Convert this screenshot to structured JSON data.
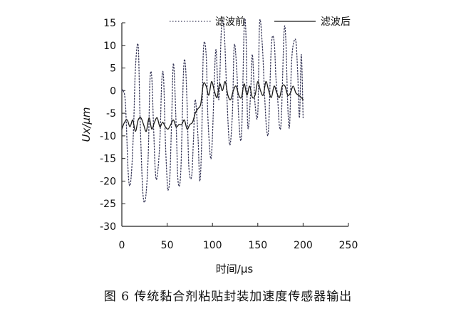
{
  "caption": "图 6   传统黏合剂粘贴封装加速度传感器输出",
  "chart_data": {
    "type": "line",
    "title": "",
    "xlabel": "时间/μs",
    "ylabel": "Ux/μm",
    "xlim": [
      0,
      250
    ],
    "ylim": [
      -30,
      15
    ],
    "xticks": [
      0,
      50,
      100,
      150,
      200,
      250
    ],
    "yticks": [
      15,
      10,
      5,
      0,
      -5,
      -10,
      -15,
      -20,
      -25,
      -30
    ],
    "grid": false,
    "legend_position": "top-right",
    "series": [
      {
        "name": "滤波前",
        "style": "dotted",
        "color": "#3a3a5a",
        "x": [
          0,
          1.5,
          4,
          7,
          9,
          11,
          13,
          15,
          18,
          20,
          23,
          26,
          29,
          31,
          33,
          35,
          37,
          39,
          42,
          44,
          46,
          48,
          50,
          51,
          53,
          55,
          57,
          60,
          62,
          65,
          68,
          70,
          72,
          74,
          77,
          79,
          81,
          84,
          86,
          88,
          90,
          93,
          95,
          98,
          100,
          102,
          104,
          107,
          110,
          113,
          116,
          119,
          122,
          124,
          127,
          129,
          132,
          135,
          137,
          139,
          142,
          144,
          147,
          150,
          152,
          155,
          158,
          160,
          162,
          165,
          168,
          170,
          172,
          174,
          176,
          179,
          181,
          183,
          185,
          187,
          189,
          192,
          194,
          196,
          198,
          200
        ],
        "y": [
          0,
          0,
          -3,
          -18,
          -21,
          -17,
          -8,
          5,
          10,
          -5,
          -22,
          -24,
          -15,
          2,
          3,
          -8,
          -18,
          -19,
          -11,
          2,
          3,
          -11,
          -20,
          -22,
          -19,
          -6,
          6,
          -8,
          -20,
          -18,
          4,
          6,
          -3,
          -17,
          -19,
          -11,
          -2,
          -10,
          -20,
          -12,
          9,
          8,
          -6,
          -15,
          -10,
          2,
          9,
          -2,
          14,
          13,
          -2,
          -12,
          -5,
          10,
          4,
          -6,
          -10,
          14,
          12,
          -8,
          -1,
          8,
          -3,
          -5,
          15,
          10,
          -3,
          -9,
          -8,
          10,
          11,
          3,
          -2,
          -8,
          -6,
          13,
          11,
          -3,
          -8,
          5,
          10,
          11,
          4,
          -6,
          8,
          -6
        ]
      },
      {
        "name": "滤波后",
        "style": "solid",
        "color": "#1a1a1a",
        "x": [
          0,
          3,
          6,
          9,
          12,
          15,
          18,
          21,
          24,
          27,
          30,
          33,
          36,
          39,
          42,
          45,
          48,
          51,
          54,
          57,
          60,
          63,
          66,
          69,
          72,
          75,
          78,
          81,
          84,
          87,
          90,
          93,
          96,
          99,
          102,
          105,
          108,
          111,
          114,
          117,
          120,
          123,
          126,
          129,
          132,
          135,
          138,
          141,
          144,
          147,
          150,
          153,
          156,
          159,
          162,
          165,
          168,
          171,
          174,
          177,
          180,
          183,
          186,
          189,
          192,
          195,
          198,
          200
        ],
        "y": [
          -8.5,
          -7,
          -6.5,
          -8,
          -6.5,
          -9,
          -6.5,
          -6,
          -7.5,
          -9,
          -6,
          -8.5,
          -7,
          -6,
          -8,
          -7,
          -8,
          -8.5,
          -7.5,
          -6.5,
          -8,
          -7.5,
          -7.5,
          -6.5,
          -8.5,
          -7.5,
          -7,
          -5,
          -4,
          -3,
          1.5,
          1,
          -1,
          2,
          0,
          -1.5,
          1.5,
          0,
          2,
          -1,
          -2,
          0,
          1,
          -1,
          -1.5,
          1.5,
          -1,
          1,
          -1.5,
          -1,
          2,
          0,
          -1,
          2,
          0,
          -1.5,
          1,
          -0.5,
          -1.5,
          1,
          1,
          -1,
          -0.5,
          1,
          -0.5,
          -1,
          -1.5,
          -2
        ]
      }
    ]
  }
}
